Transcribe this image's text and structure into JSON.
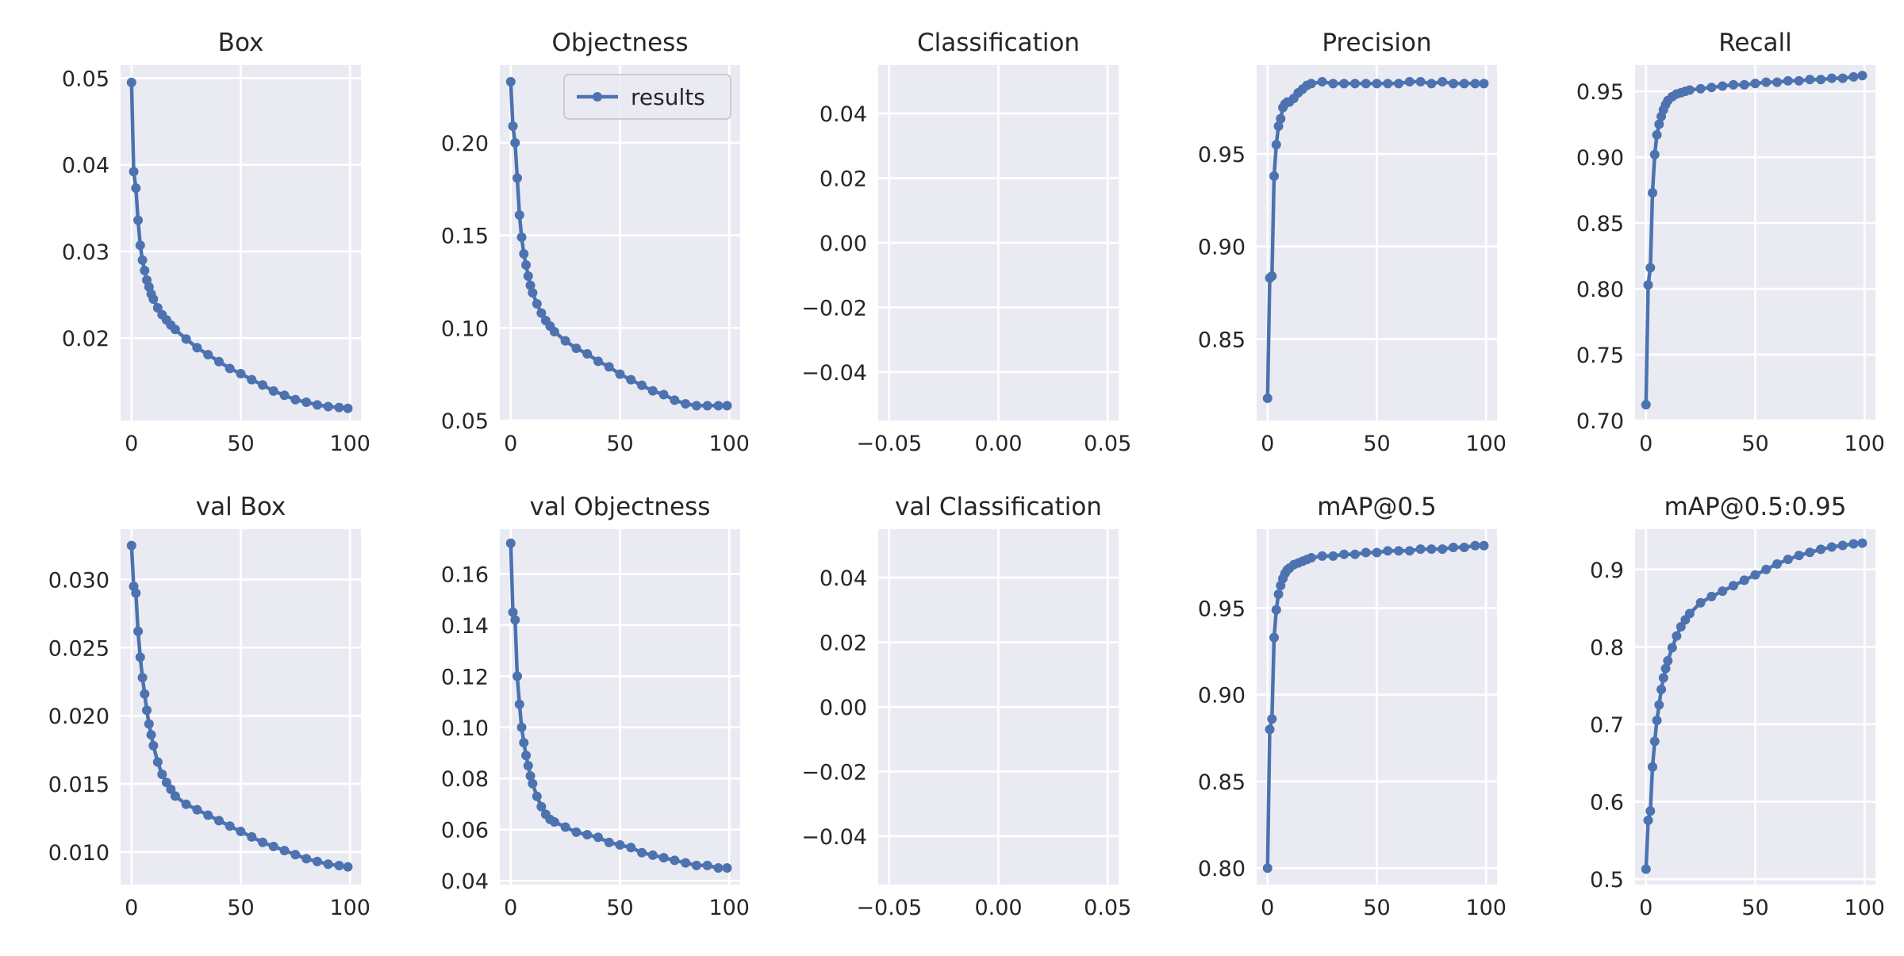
{
  "chart_data": [
    {
      "type": "line",
      "title": "Box",
      "xlim": [
        -5,
        105
      ],
      "ylim": [
        0.0105,
        0.0515
      ],
      "xticks": [
        0,
        50,
        100
      ],
      "xtick_labels": [
        "0",
        "50",
        "100"
      ],
      "yticks": [
        0.02,
        0.03,
        0.04,
        0.05
      ],
      "ytick_labels": [
        "0.02",
        "0.03",
        "0.04",
        "0.05"
      ],
      "grid": true,
      "series": [
        {
          "name": "results",
          "x": [
            0,
            1,
            2,
            3,
            4,
            5,
            6,
            7,
            8,
            9,
            10,
            12,
            14,
            16,
            18,
            20,
            25,
            30,
            35,
            40,
            45,
            50,
            55,
            60,
            65,
            70,
            75,
            80,
            85,
            90,
            95,
            99
          ],
          "y": [
            0.0495,
            0.0392,
            0.0373,
            0.0336,
            0.0307,
            0.029,
            0.0278,
            0.0267,
            0.0259,
            0.0251,
            0.0245,
            0.0235,
            0.0227,
            0.0221,
            0.0215,
            0.021,
            0.0199,
            0.0189,
            0.0181,
            0.0173,
            0.0165,
            0.0159,
            0.0152,
            0.0146,
            0.0139,
            0.0134,
            0.0129,
            0.0126,
            0.0123,
            0.0121,
            0.012,
            0.0119
          ]
        }
      ]
    },
    {
      "type": "line",
      "title": "Objectness",
      "xlim": [
        -5,
        105
      ],
      "ylim": [
        0.05,
        0.242
      ],
      "xticks": [
        0,
        50,
        100
      ],
      "xtick_labels": [
        "0",
        "50",
        "100"
      ],
      "yticks": [
        0.05,
        0.1,
        0.15,
        0.2
      ],
      "ytick_labels": [
        "0.05",
        "0.10",
        "0.15",
        "0.20"
      ],
      "grid": true,
      "legend": {
        "position": "top-right",
        "entries": [
          "results"
        ]
      },
      "series": [
        {
          "name": "results",
          "x": [
            0,
            1,
            2,
            3,
            4,
            5,
            6,
            7,
            8,
            9,
            10,
            12,
            14,
            16,
            18,
            20,
            25,
            30,
            35,
            40,
            45,
            50,
            55,
            60,
            65,
            70,
            75,
            80,
            85,
            90,
            95,
            99
          ],
          "y": [
            0.233,
            0.209,
            0.2,
            0.181,
            0.161,
            0.149,
            0.14,
            0.134,
            0.128,
            0.123,
            0.119,
            0.113,
            0.108,
            0.104,
            0.101,
            0.098,
            0.093,
            0.089,
            0.086,
            0.082,
            0.079,
            0.075,
            0.072,
            0.069,
            0.066,
            0.064,
            0.061,
            0.059,
            0.058,
            0.058,
            0.058,
            0.058
          ]
        }
      ]
    },
    {
      "type": "line",
      "title": "Classification",
      "xlim": [
        -0.055,
        0.055
      ],
      "ylim": [
        -0.055,
        0.055
      ],
      "xticks": [
        -0.05,
        0,
        0.05
      ],
      "xtick_labels": [
        "−0.05",
        "0.00",
        "0.05"
      ],
      "yticks": [
        -0.04,
        -0.02,
        0,
        0.02,
        0.04
      ],
      "ytick_labels": [
        "−0.04",
        "−0.02",
        "0.00",
        "0.02",
        "0.04"
      ],
      "grid": true,
      "series": []
    },
    {
      "type": "line",
      "title": "Precision",
      "xlim": [
        -5,
        105
      ],
      "ylim": [
        0.806,
        0.998
      ],
      "xticks": [
        0,
        50,
        100
      ],
      "xtick_labels": [
        "0",
        "50",
        "100"
      ],
      "yticks": [
        0.85,
        0.9,
        0.95
      ],
      "ytick_labels": [
        "0.85",
        "0.90",
        "0.95"
      ],
      "grid": true,
      "series": [
        {
          "name": "results",
          "x": [
            0,
            1,
            2,
            3,
            4,
            5,
            6,
            7,
            8,
            9,
            10,
            12,
            14,
            16,
            18,
            20,
            25,
            30,
            35,
            40,
            45,
            50,
            55,
            60,
            65,
            70,
            75,
            80,
            85,
            90,
            95,
            99
          ],
          "y": [
            0.818,
            0.883,
            0.884,
            0.938,
            0.955,
            0.965,
            0.969,
            0.975,
            0.977,
            0.978,
            0.978,
            0.98,
            0.983,
            0.985,
            0.987,
            0.988,
            0.989,
            0.988,
            0.988,
            0.988,
            0.988,
            0.988,
            0.988,
            0.988,
            0.989,
            0.989,
            0.988,
            0.989,
            0.988,
            0.988,
            0.988,
            0.988
          ]
        }
      ]
    },
    {
      "type": "line",
      "title": "Recall",
      "xlim": [
        -5,
        105
      ],
      "ylim": [
        0.7,
        0.97
      ],
      "xticks": [
        0,
        50,
        100
      ],
      "xtick_labels": [
        "0",
        "50",
        "100"
      ],
      "yticks": [
        0.7,
        0.75,
        0.8,
        0.85,
        0.9,
        0.95
      ],
      "ytick_labels": [
        "0.70",
        "0.75",
        "0.80",
        "0.85",
        "0.90",
        "0.95"
      ],
      "grid": true,
      "series": [
        {
          "name": "results",
          "x": [
            0,
            1,
            2,
            3,
            4,
            5,
            6,
            7,
            8,
            9,
            10,
            12,
            14,
            16,
            18,
            20,
            25,
            30,
            35,
            40,
            45,
            50,
            55,
            60,
            65,
            70,
            75,
            80,
            85,
            90,
            95,
            99
          ],
          "y": [
            0.712,
            0.803,
            0.816,
            0.873,
            0.902,
            0.917,
            0.925,
            0.931,
            0.936,
            0.94,
            0.943,
            0.946,
            0.948,
            0.949,
            0.95,
            0.951,
            0.952,
            0.953,
            0.954,
            0.955,
            0.955,
            0.956,
            0.957,
            0.957,
            0.958,
            0.958,
            0.959,
            0.959,
            0.96,
            0.96,
            0.961,
            0.962
          ]
        }
      ]
    },
    {
      "type": "line",
      "title": "val Box",
      "xlim": [
        -5,
        105
      ],
      "ylim": [
        0.0076,
        0.0337
      ],
      "xticks": [
        0,
        50,
        100
      ],
      "xtick_labels": [
        "0",
        "50",
        "100"
      ],
      "yticks": [
        0.01,
        0.015,
        0.02,
        0.025,
        0.03
      ],
      "ytick_labels": [
        "0.010",
        "0.015",
        "0.020",
        "0.025",
        "0.030"
      ],
      "grid": true,
      "series": [
        {
          "name": "results",
          "x": [
            0,
            1,
            2,
            3,
            4,
            5,
            6,
            7,
            8,
            9,
            10,
            12,
            14,
            16,
            18,
            20,
            25,
            30,
            35,
            40,
            45,
            50,
            55,
            60,
            65,
            70,
            75,
            80,
            85,
            90,
            95,
            99
          ],
          "y": [
            0.0325,
            0.0295,
            0.029,
            0.0262,
            0.0243,
            0.0228,
            0.0216,
            0.0204,
            0.0194,
            0.0186,
            0.0178,
            0.0166,
            0.0157,
            0.0151,
            0.0146,
            0.0141,
            0.0135,
            0.0131,
            0.0127,
            0.0123,
            0.0119,
            0.0115,
            0.0111,
            0.0107,
            0.0104,
            0.0101,
            0.0098,
            0.0095,
            0.0093,
            0.0091,
            0.009,
            0.0089
          ]
        }
      ]
    },
    {
      "type": "line",
      "title": "val Objectness",
      "xlim": [
        -5,
        105
      ],
      "ylim": [
        0.0385,
        0.1775
      ],
      "xticks": [
        0,
        50,
        100
      ],
      "xtick_labels": [
        "0",
        "50",
        "100"
      ],
      "yticks": [
        0.04,
        0.06,
        0.08,
        0.1,
        0.12,
        0.14,
        0.16
      ],
      "ytick_labels": [
        "0.04",
        "0.06",
        "0.08",
        "0.10",
        "0.12",
        "0.14",
        "0.16"
      ],
      "grid": true,
      "series": [
        {
          "name": "results",
          "x": [
            0,
            1,
            2,
            3,
            4,
            5,
            6,
            7,
            8,
            9,
            10,
            12,
            14,
            16,
            18,
            20,
            25,
            30,
            35,
            40,
            45,
            50,
            55,
            60,
            65,
            70,
            75,
            80,
            85,
            90,
            95,
            99
          ],
          "y": [
            0.172,
            0.145,
            0.142,
            0.12,
            0.109,
            0.1,
            0.094,
            0.089,
            0.085,
            0.081,
            0.078,
            0.073,
            0.069,
            0.066,
            0.064,
            0.063,
            0.061,
            0.059,
            0.058,
            0.057,
            0.055,
            0.054,
            0.053,
            0.051,
            0.05,
            0.049,
            0.048,
            0.047,
            0.046,
            0.046,
            0.045,
            0.045
          ]
        }
      ]
    },
    {
      "type": "line",
      "title": "val Classification",
      "xlim": [
        -0.055,
        0.055
      ],
      "ylim": [
        -0.055,
        0.055
      ],
      "xticks": [
        -0.05,
        0,
        0.05
      ],
      "xtick_labels": [
        "−0.05",
        "0.00",
        "0.05"
      ],
      "yticks": [
        -0.04,
        -0.02,
        0,
        0.02,
        0.04
      ],
      "ytick_labels": [
        "−0.04",
        "−0.02",
        "0.00",
        "0.02",
        "0.04"
      ],
      "grid": true,
      "series": []
    },
    {
      "type": "line",
      "title": "mAP@0.5",
      "xlim": [
        -5,
        105
      ],
      "ylim": [
        0.7905,
        0.9955
      ],
      "xticks": [
        0,
        50,
        100
      ],
      "xtick_labels": [
        "0",
        "50",
        "100"
      ],
      "yticks": [
        0.8,
        0.85,
        0.9,
        0.95
      ],
      "ytick_labels": [
        "0.80",
        "0.85",
        "0.90",
        "0.95"
      ],
      "grid": true,
      "series": [
        {
          "name": "results",
          "x": [
            0,
            1,
            2,
            3,
            4,
            5,
            6,
            7,
            8,
            9,
            10,
            12,
            14,
            16,
            18,
            20,
            25,
            30,
            35,
            40,
            45,
            50,
            55,
            60,
            65,
            70,
            75,
            80,
            85,
            90,
            95,
            99
          ],
          "y": [
            0.8,
            0.88,
            0.886,
            0.933,
            0.949,
            0.958,
            0.963,
            0.967,
            0.97,
            0.972,
            0.973,
            0.975,
            0.976,
            0.977,
            0.978,
            0.979,
            0.98,
            0.98,
            0.981,
            0.981,
            0.982,
            0.982,
            0.983,
            0.983,
            0.983,
            0.984,
            0.984,
            0.984,
            0.985,
            0.985,
            0.986,
            0.986
          ]
        }
      ]
    },
    {
      "type": "line",
      "title": "mAP@0.5:0.95",
      "xlim": [
        -5,
        105
      ],
      "ylim": [
        0.493,
        0.952
      ],
      "xticks": [
        0,
        50,
        100
      ],
      "xtick_labels": [
        "0",
        "50",
        "100"
      ],
      "yticks": [
        0.5,
        0.6,
        0.7,
        0.8,
        0.9
      ],
      "ytick_labels": [
        "0.5",
        "0.6",
        "0.7",
        "0.8",
        "0.9"
      ],
      "grid": true,
      "series": [
        {
          "name": "results",
          "x": [
            0,
            1,
            2,
            3,
            4,
            5,
            6,
            7,
            8,
            9,
            10,
            12,
            14,
            16,
            18,
            20,
            25,
            30,
            35,
            40,
            45,
            50,
            55,
            60,
            65,
            70,
            75,
            80,
            85,
            90,
            95,
            99
          ],
          "y": [
            0.513,
            0.576,
            0.588,
            0.645,
            0.678,
            0.705,
            0.725,
            0.745,
            0.76,
            0.772,
            0.782,
            0.799,
            0.814,
            0.826,
            0.835,
            0.843,
            0.857,
            0.865,
            0.872,
            0.879,
            0.886,
            0.893,
            0.9,
            0.907,
            0.913,
            0.918,
            0.922,
            0.926,
            0.929,
            0.931,
            0.933,
            0.934
          ]
        }
      ]
    }
  ],
  "colors": {
    "series": "#4c72b0",
    "plot_bg": "#eaeaf2",
    "grid": "#ffffff",
    "text": "#262626"
  }
}
